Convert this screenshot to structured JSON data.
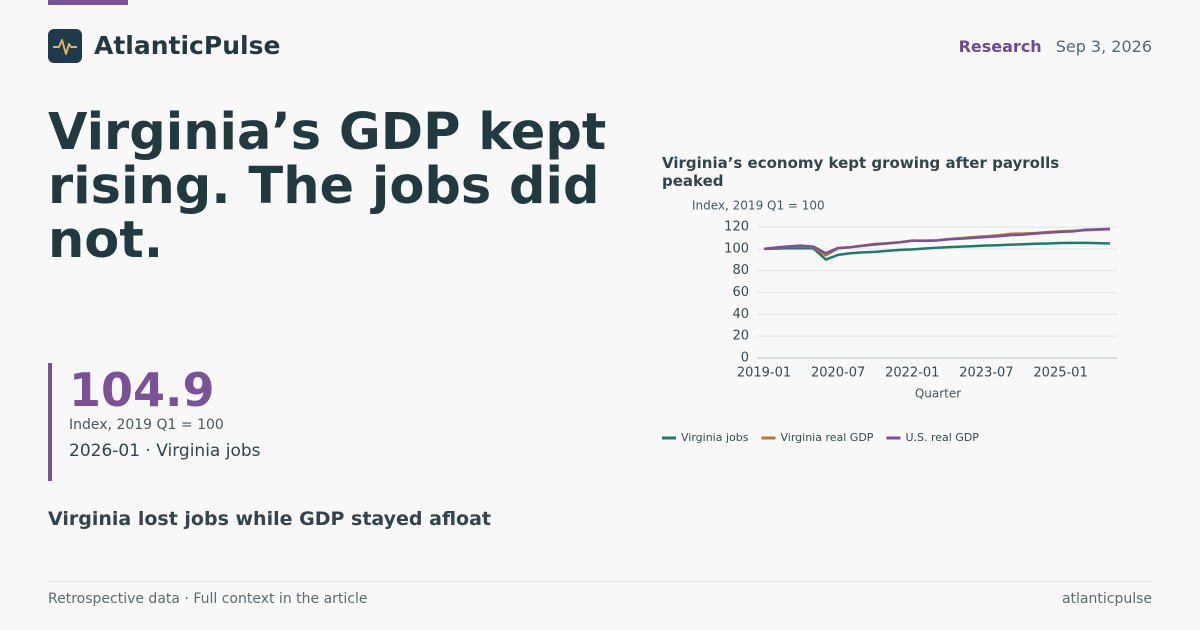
{
  "brand": "AtlanticPulse",
  "nav": {
    "section": "Research",
    "date": "Sep 3, 2026"
  },
  "headline": "Virginia’s GDP kept rising. The jobs did not.",
  "stat": {
    "value": 104.9,
    "note": "Index, 2019 Q1 = 100",
    "label": "2026-01 · Virginia jobs"
  },
  "subhead": "Virginia lost jobs while GDP stayed afloat",
  "footer": {
    "left": "Retrospective data · Full context in the article",
    "right": "atlanticpulse"
  },
  "chart_data": {
    "type": "line",
    "title": "Virginia’s economy kept growing after payrolls peaked",
    "y_label": "Index, 2019 Q1 = 100",
    "x_label": "Quarter",
    "categories": [
      "2019-01",
      null,
      null,
      null,
      null,
      null,
      "2020-07",
      null,
      null,
      null,
      null,
      null,
      "2022-01",
      null,
      null,
      null,
      null,
      null,
      "2023-07",
      null,
      null,
      null,
      null,
      null,
      "2025-01",
      null,
      null,
      null,
      null
    ],
    "series": [
      {
        "name": "Virginia jobs",
        "color": "#1f7a6e",
        "values": [
          100,
          100.2,
          100.5,
          100.7,
          100.4,
          90.2,
          94.5,
          96,
          96.8,
          97.2,
          98.2,
          99,
          99.5,
          100.3,
          101,
          101.6,
          102,
          102.5,
          103,
          103.3,
          103.8,
          104.2,
          104.6,
          104.9,
          105.3,
          105.5,
          105.5,
          105.2,
          104.9
        ]
      },
      {
        "name": "Virginia real GDP",
        "color": "#b07d2b",
        "values": [
          100,
          101,
          102,
          102.5,
          101.5,
          94,
          100.5,
          101.5,
          103,
          104.5,
          105,
          106,
          107.5,
          107.5,
          107.8,
          109,
          109.8,
          110.8,
          111.5,
          112.5,
          113.8,
          114,
          114.5,
          115.3,
          116,
          116.5,
          117,
          117.5,
          118
        ]
      },
      {
        "name": "U.S. real GDP",
        "color": "#7b5297",
        "values": [
          100,
          101.2,
          102.3,
          103,
          102,
          96,
          100.8,
          101.5,
          102.8,
          104,
          105,
          106,
          107.5,
          107.3,
          107.6,
          108.8,
          109.3,
          110,
          110.8,
          111.5,
          112.5,
          113,
          114,
          114.8,
          115.5,
          116,
          117.5,
          117.8,
          118.3
        ]
      }
    ],
    "ylim": [
      0,
      120
    ],
    "yticks": [
      0,
      20,
      40,
      60,
      80,
      100,
      120
    ],
    "grid": true,
    "legend": "bottom"
  }
}
